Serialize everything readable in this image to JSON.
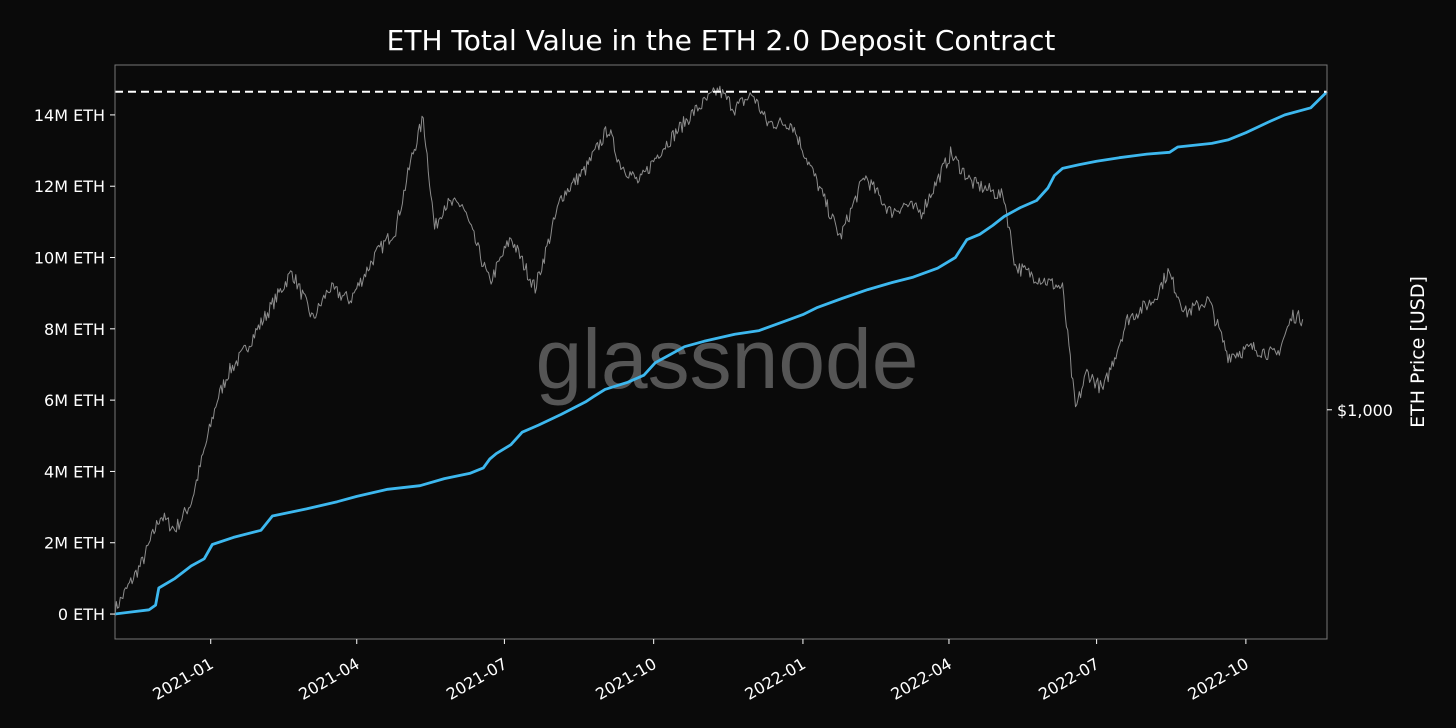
{
  "chart_data": {
    "type": "line",
    "title": "ETH Total Value in the ETH 2.0 Deposit Contract",
    "watermark": "glassnode",
    "xlabel": "",
    "ylabel": "",
    "ylabel_right": "ETH Price [USD]",
    "x_ticks": [
      "2021-01",
      "2021-04",
      "2021-07",
      "2021-10",
      "2022-01",
      "2022-04",
      "2022-07",
      "2022-10"
    ],
    "y_ticks": [
      "0 ETH",
      "2M ETH",
      "4M ETH",
      "6M ETH",
      "8M ETH",
      "10M ETH",
      "12M ETH",
      "14M ETH"
    ],
    "y_right_ticks": [
      "$1,000"
    ],
    "xlim": [
      "2020-11-03",
      "2022-11-20"
    ],
    "ylim": [
      -700000,
      15400000
    ],
    "y_right_scale": "log",
    "reference_line": {
      "value": 14650000,
      "style": "dashed",
      "color": "#ffffff"
    },
    "colors": {
      "background": "#0a0a0a",
      "deposits": "#3db8ef",
      "price": "#8c8c8c",
      "text": "#ffffff",
      "frame": "#777777"
    },
    "series": [
      {
        "axis": "left",
        "points": [
          [
            "2020-11-03",
            0
          ],
          [
            "2020-11-24",
            120000
          ],
          [
            "2020-11-28",
            250000
          ],
          [
            "2020-11-30",
            730000
          ],
          [
            "2020-12-10",
            1000000
          ],
          [
            "2020-12-20",
            1350000
          ],
          [
            "2020-12-28",
            1550000
          ],
          [
            "2021-01-02",
            1950000
          ],
          [
            "2021-01-15",
            2150000
          ],
          [
            "2021-02-01",
            2350000
          ],
          [
            "2021-02-08",
            2750000
          ],
          [
            "2021-03-01",
            2950000
          ],
          [
            "2021-03-20",
            3150000
          ],
          [
            "2021-04-01",
            3300000
          ],
          [
            "2021-04-20",
            3500000
          ],
          [
            "2021-05-10",
            3600000
          ],
          [
            "2021-05-25",
            3800000
          ],
          [
            "2021-06-10",
            3950000
          ],
          [
            "2021-06-18",
            4100000
          ],
          [
            "2021-06-22",
            4350000
          ],
          [
            "2021-06-26",
            4500000
          ],
          [
            "2021-07-05",
            4750000
          ],
          [
            "2021-07-12",
            5100000
          ],
          [
            "2021-07-22",
            5300000
          ],
          [
            "2021-08-05",
            5600000
          ],
          [
            "2021-08-20",
            5950000
          ],
          [
            "2021-08-25",
            6100000
          ],
          [
            "2021-09-01",
            6300000
          ],
          [
            "2021-09-15",
            6500000
          ],
          [
            "2021-09-25",
            6700000
          ],
          [
            "2021-10-02",
            7050000
          ],
          [
            "2021-10-10",
            7250000
          ],
          [
            "2021-10-20",
            7500000
          ],
          [
            "2021-11-01",
            7650000
          ],
          [
            "2021-11-20",
            7850000
          ],
          [
            "2021-12-05",
            7950000
          ],
          [
            "2021-12-20",
            8200000
          ],
          [
            "2022-01-01",
            8400000
          ],
          [
            "2022-01-10",
            8600000
          ],
          [
            "2022-01-25",
            8850000
          ],
          [
            "2022-02-10",
            9100000
          ],
          [
            "2022-02-25",
            9300000
          ],
          [
            "2022-03-10",
            9450000
          ],
          [
            "2022-03-25",
            9700000
          ],
          [
            "2022-04-05",
            10000000
          ],
          [
            "2022-04-12",
            10500000
          ],
          [
            "2022-04-20",
            10650000
          ],
          [
            "2022-04-28",
            10900000
          ],
          [
            "2022-05-05",
            11150000
          ],
          [
            "2022-05-15",
            11400000
          ],
          [
            "2022-05-25",
            11600000
          ],
          [
            "2022-06-01",
            11950000
          ],
          [
            "2022-06-05",
            12300000
          ],
          [
            "2022-06-10",
            12500000
          ],
          [
            "2022-06-20",
            12600000
          ],
          [
            "2022-07-01",
            12700000
          ],
          [
            "2022-07-15",
            12800000
          ],
          [
            "2022-08-01",
            12900000
          ],
          [
            "2022-08-15",
            12950000
          ],
          [
            "2022-08-20",
            13100000
          ],
          [
            "2022-09-10",
            13200000
          ],
          [
            "2022-09-20",
            13300000
          ],
          [
            "2022-10-01",
            13500000
          ],
          [
            "2022-10-15",
            13800000
          ],
          [
            "2022-10-25",
            14000000
          ],
          [
            "2022-11-10",
            14200000
          ],
          [
            "2022-11-20",
            14650000
          ]
        ]
      },
      {
        "axis": "right",
        "points": [
          [
            "2020-11-03",
            380
          ],
          [
            "2020-11-20",
            480
          ],
          [
            "2020-12-01",
            600
          ],
          [
            "2020-12-10",
            560
          ],
          [
            "2020-12-20",
            640
          ],
          [
            "2021-01-05",
            1050
          ],
          [
            "2021-01-12",
            1200
          ],
          [
            "2021-01-20",
            1300
          ],
          [
            "2021-02-05",
            1600
          ],
          [
            "2021-02-20",
            1950
          ],
          [
            "2021-03-05",
            1550
          ],
          [
            "2021-03-15",
            1800
          ],
          [
            "2021-03-28",
            1700
          ],
          [
            "2021-04-12",
            2100
          ],
          [
            "2021-04-25",
            2400
          ],
          [
            "2021-05-05",
            3400
          ],
          [
            "2021-05-12",
            4100
          ],
          [
            "2021-05-19",
            2400
          ],
          [
            "2021-05-25",
            2700
          ],
          [
            "2021-06-05",
            2700
          ],
          [
            "2021-06-22",
            1850
          ],
          [
            "2021-07-05",
            2300
          ],
          [
            "2021-07-20",
            1800
          ],
          [
            "2021-08-05",
            2800
          ],
          [
            "2021-08-20",
            3200
          ],
          [
            "2021-09-03",
            3900
          ],
          [
            "2021-09-10",
            3300
          ],
          [
            "2021-09-22",
            3000
          ],
          [
            "2021-10-05",
            3500
          ],
          [
            "2021-10-25",
            4200
          ],
          [
            "2021-11-10",
            4700
          ],
          [
            "2021-11-20",
            4300
          ],
          [
            "2021-12-01",
            4600
          ],
          [
            "2021-12-10",
            4000
          ],
          [
            "2021-12-25",
            4000
          ],
          [
            "2022-01-08",
            3100
          ],
          [
            "2022-01-24",
            2300
          ],
          [
            "2022-02-08",
            3100
          ],
          [
            "2022-02-24",
            2600
          ],
          [
            "2022-03-05",
            2700
          ],
          [
            "2022-03-15",
            2600
          ],
          [
            "2022-04-02",
            3450
          ],
          [
            "2022-04-15",
            3000
          ],
          [
            "2022-04-25",
            2900
          ],
          [
            "2022-05-05",
            2800
          ],
          [
            "2022-05-12",
            2000
          ],
          [
            "2022-05-25",
            1900
          ],
          [
            "2022-06-10",
            1800
          ],
          [
            "2022-06-18",
            1000
          ],
          [
            "2022-06-25",
            1200
          ],
          [
            "2022-07-05",
            1100
          ],
          [
            "2022-07-20",
            1550
          ],
          [
            "2022-08-05",
            1700
          ],
          [
            "2022-08-14",
            1950
          ],
          [
            "2022-08-25",
            1600
          ],
          [
            "2022-09-08",
            1700
          ],
          [
            "2022-09-20",
            1300
          ],
          [
            "2022-10-05",
            1350
          ],
          [
            "2022-10-20",
            1300
          ],
          [
            "2022-10-30",
            1580
          ],
          [
            "2022-11-05",
            1550
          ]
        ]
      }
    ]
  }
}
